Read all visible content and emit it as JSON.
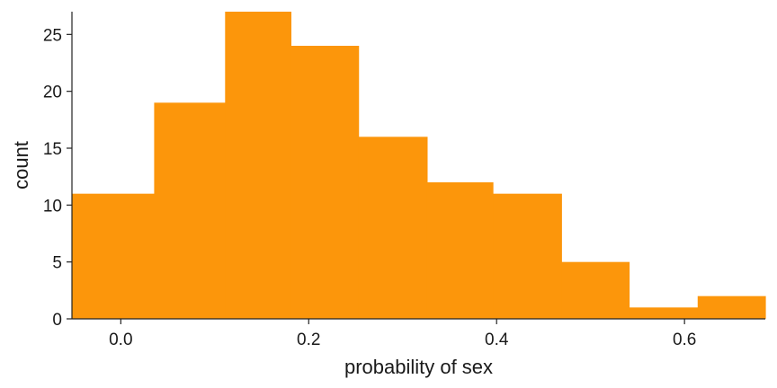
{
  "chart_data": {
    "type": "bar",
    "histogram": true,
    "bin_edges": [
      -0.052,
      0.0355,
      0.111,
      0.181,
      0.253,
      0.326,
      0.396,
      0.469,
      0.541,
      0.614,
      0.686
    ],
    "values": [
      11,
      19,
      27,
      24,
      16,
      12,
      11,
      5,
      1,
      2
    ],
    "xlabel": "probability of sex",
    "ylabel": "count",
    "xlim": [
      -0.052,
      0.686
    ],
    "ylim": [
      0,
      27
    ],
    "xticks": [
      0.0,
      0.2,
      0.4,
      0.6
    ],
    "xtick_labels": [
      "0.0",
      "0.2",
      "0.4",
      "0.6"
    ],
    "yticks": [
      0,
      5,
      10,
      15,
      20,
      25
    ],
    "ytick_labels": [
      "0",
      "5",
      "10",
      "15",
      "20",
      "25"
    ],
    "grid": false,
    "colors": {
      "bar": "#fc960b",
      "axis": "#222222"
    }
  }
}
